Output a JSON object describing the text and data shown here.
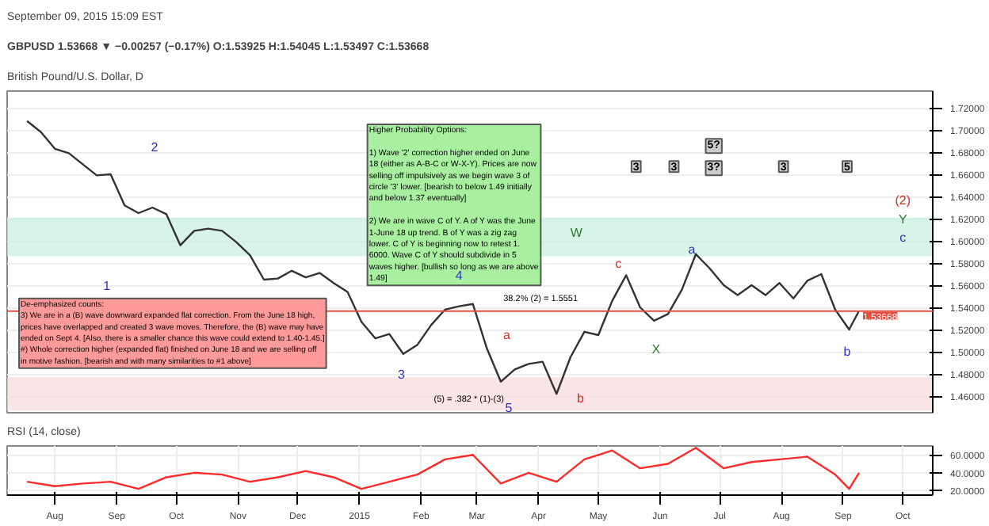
{
  "chart_data": [
    {
      "type": "line",
      "title": "British Pound/U.S. Dollar, D",
      "subtitle": "GBPUSD 1.53668 ▼ −0.00257 (−0.17%) O:1.53925 H:1.54045 L:1.53497 C:1.53668",
      "x": [
        "2014-07-18",
        "2014-07-25",
        "2014-08-01",
        "2014-08-08",
        "2014-08-15",
        "2014-08-22",
        "2014-08-29",
        "2014-09-05",
        "2014-09-12",
        "2014-09-19",
        "2014-09-26",
        "2014-10-03",
        "2014-10-10",
        "2014-10-17",
        "2014-10-24",
        "2014-10-31",
        "2014-11-07",
        "2014-11-14",
        "2014-11-21",
        "2014-11-28",
        "2014-12-05",
        "2014-12-12",
        "2014-12-19",
        "2014-12-26",
        "2015-01-02",
        "2015-01-09",
        "2015-01-16",
        "2015-01-23",
        "2015-01-30",
        "2015-02-06",
        "2015-02-13",
        "2015-02-20",
        "2015-02-27",
        "2015-03-06",
        "2015-03-13",
        "2015-03-20",
        "2015-03-27",
        "2015-04-03",
        "2015-04-10",
        "2015-04-17",
        "2015-04-24",
        "2015-05-01",
        "2015-05-08",
        "2015-05-15",
        "2015-05-22",
        "2015-05-29",
        "2015-06-05",
        "2015-06-12",
        "2015-06-19",
        "2015-06-26",
        "2015-07-03",
        "2015-07-10",
        "2015-07-17",
        "2015-07-24",
        "2015-07-31",
        "2015-08-07",
        "2015-08-14",
        "2015-08-21",
        "2015-08-28",
        "2015-09-04",
        "2015-09-09"
      ],
      "series": [
        {
          "color": "#333333",
          "values": [
            1.708,
            1.698,
            1.683,
            1.679,
            1.669,
            1.659,
            1.66,
            1.632,
            1.625,
            1.63,
            1.624,
            1.596,
            1.609,
            1.611,
            1.609,
            1.599,
            1.587,
            1.565,
            1.566,
            1.573,
            1.567,
            1.571,
            1.562,
            1.554,
            1.527,
            1.512,
            1.516,
            1.498,
            1.506,
            1.524,
            1.538,
            1.541,
            1.543,
            1.503,
            1.473,
            1.484,
            1.489,
            1.491,
            1.462,
            1.495,
            1.518,
            1.515,
            1.546,
            1.569,
            1.54,
            1.528,
            1.534,
            1.556,
            1.588,
            1.575,
            1.56,
            1.551,
            1.56,
            1.551,
            1.562,
            1.548,
            1.564,
            1.57,
            1.538,
            1.52,
            1.537
          ]
        }
      ],
      "xlim": [
        "2014-07-08",
        "2015-10-16"
      ],
      "ylim": [
        1.445,
        1.735
      ],
      "yticks": [
        {
          "value": 1.46,
          "label": "1.46000"
        },
        {
          "value": 1.48,
          "label": "1.48000"
        },
        {
          "value": 1.5,
          "label": "1.50000"
        },
        {
          "value": 1.52,
          "label": "1.52000"
        },
        {
          "value": 1.54,
          "label": "1.54000"
        },
        {
          "value": 1.56,
          "label": "1.56000"
        },
        {
          "value": 1.58,
          "label": "1.58000"
        },
        {
          "value": 1.6,
          "label": "1.60000"
        },
        {
          "value": 1.62,
          "label": "1.62000"
        },
        {
          "value": 1.64,
          "label": "1.64000"
        },
        {
          "value": 1.66,
          "label": "1.66000"
        },
        {
          "value": 1.68,
          "label": "1.68000"
        },
        {
          "value": 1.7,
          "label": "1.70000"
        },
        {
          "value": 1.72,
          "label": "1.72000"
        }
      ],
      "tick_labels": "y",
      "grid": true,
      "ref_lines": [
        {
          "axis": "y",
          "value": 1.53668,
          "label": "1.53668",
          "color": "#e74c3c"
        }
      ],
      "bands": [
        {
          "axis": "y",
          "from": 1.586,
          "to": 1.621,
          "color": "#c8f0e0"
        },
        {
          "axis": "y",
          "from": 1.447,
          "to": 1.477,
          "color": "#f6dada"
        }
      ],
      "annotations": [
        "September 09, 2015 15:09 EST",
        "Higher Probability Options:\n\n1)  Wave '2' correction higher ended on June\n18 (either as A-B-C or W-X-Y). Prices are now\nselling off impulsively as we begin wave 3 of\ncircle '3' lower. [bearish to below 1.49 initially\nand below 1.37 eventually]\n\n2)  We are in wave C of Y. A of Y was the June\n1-June 18 up trend. B of Y was a zig zag\nlower. C of Y is beginning now to retest 1.\n6000. Wave C of Y should subdivide in 5\nwaves higher. [bullish so long as we are above\n1.49]",
        "De-emphasized counts:\n3)  We are in a (B) wave downward expanded flat correction. From the June 18 high,\nprices have overlapped and created 3 wave moves. Therefore, the (B) wave may have\nended on Sept 4. [Also, there is a smaller chance this wave could extend to 1.40-1.45.]\n#) Whole correction higher (expanded flat) finished on June 18 and we are selling off\nin motive fashion. [bearish and with many similarities to #1 above]",
        "38.2% (2) = 1.5551",
        "(5) = .382 * (1)-(3)",
        "3",
        "3",
        "3?",
        "5?",
        "3",
        "5",
        "1",
        "2",
        "3",
        "4",
        "5",
        "a",
        "b",
        "c",
        "W",
        "X",
        "a",
        "b",
        "c",
        "Y",
        "(2)"
      ]
    },
    {
      "type": "line",
      "title": "RSI (14, close)",
      "x": [
        "2014-07-18",
        "2014-08-01",
        "2014-08-15",
        "2014-08-29",
        "2014-09-12",
        "2014-09-26",
        "2014-10-10",
        "2014-10-24",
        "2014-11-07",
        "2014-11-21",
        "2014-12-05",
        "2014-12-19",
        "2015-01-02",
        "2015-01-16",
        "2015-01-30",
        "2015-02-13",
        "2015-02-27",
        "2015-03-13",
        "2015-03-27",
        "2015-04-10",
        "2015-04-24",
        "2015-05-08",
        "2015-05-22",
        "2015-06-05",
        "2015-06-19",
        "2015-07-03",
        "2015-07-17",
        "2015-07-31",
        "2015-08-14",
        "2015-08-28",
        "2015-09-04",
        "2015-09-09"
      ],
      "series": [
        {
          "color": "#ff2a2a",
          "values": [
            30,
            25,
            28,
            30,
            22,
            35,
            40,
            38,
            30,
            35,
            42,
            35,
            22,
            30,
            38,
            55,
            60,
            28,
            40,
            30,
            55,
            65,
            45,
            50,
            68,
            45,
            52,
            55,
            58,
            38,
            22,
            40
          ]
        }
      ],
      "xlim": [
        "2014-07-08",
        "2015-10-16"
      ],
      "ylim": [
        15,
        70
      ],
      "yticks": [
        {
          "value": 20,
          "label": "20.0000"
        },
        {
          "value": 40,
          "label": "40.0000"
        },
        {
          "value": 60,
          "label": "60.0000"
        }
      ],
      "xticks": [
        {
          "value": "2014-08-01",
          "label": "Aug"
        },
        {
          "value": "2014-09-01",
          "label": "Sep"
        },
        {
          "value": "2014-10-01",
          "label": "Oct"
        },
        {
          "value": "2014-11-01",
          "label": "Nov"
        },
        {
          "value": "2014-12-01",
          "label": "Dec"
        },
        {
          "value": "2015-01-01",
          "label": "2015"
        },
        {
          "value": "2015-02-01",
          "label": "Feb"
        },
        {
          "value": "2015-03-01",
          "label": "Mar"
        },
        {
          "value": "2015-04-01",
          "label": "Apr"
        },
        {
          "value": "2015-05-01",
          "label": "May"
        },
        {
          "value": "2015-06-01",
          "label": "Jun"
        },
        {
          "value": "2015-07-01",
          "label": "Jul"
        },
        {
          "value": "2015-08-01",
          "label": "Aug"
        },
        {
          "value": "2015-09-01",
          "label": "Sep"
        },
        {
          "value": "2015-10-01",
          "label": "Oct"
        }
      ],
      "grid": true
    }
  ]
}
